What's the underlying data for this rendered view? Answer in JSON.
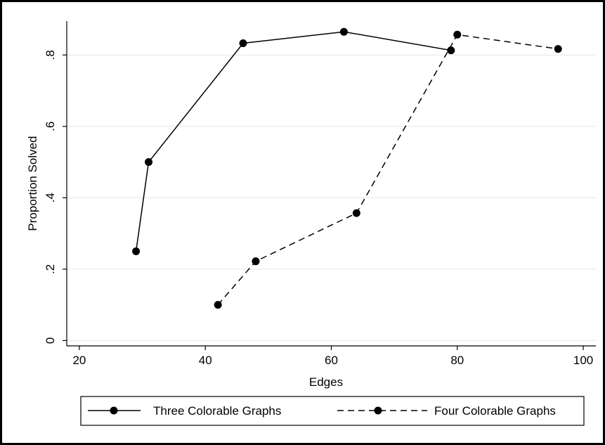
{
  "chart_data": {
    "type": "line",
    "xlabel": "Edges",
    "ylabel": "Proportion Solved",
    "xlim": [
      18,
      102
    ],
    "ylim": [
      -0.015,
      0.895
    ],
    "xticks": [
      20,
      40,
      60,
      80,
      100
    ],
    "yticks": [
      0,
      0.2,
      0.4,
      0.6,
      0.8
    ],
    "xtick_labels": [
      "20",
      "40",
      "60",
      "80",
      "100"
    ],
    "ytick_labels": [
      "0",
      ".2",
      ".4",
      ".6",
      ".8"
    ],
    "grid": "horizontal",
    "legend_position": "bottom",
    "series": [
      {
        "name": "Three Colorable Graphs",
        "style": "solid",
        "color": "#000000",
        "x": [
          29,
          31,
          46,
          62,
          79
        ],
        "y": [
          0.25,
          0.5,
          0.833,
          0.865,
          0.813
        ]
      },
      {
        "name": "Four Colorable Graphs",
        "style": "dashed",
        "color": "#000000",
        "x": [
          42,
          48,
          64,
          80,
          96
        ],
        "y": [
          0.1,
          0.222,
          0.357,
          0.857,
          0.817
        ]
      }
    ]
  }
}
